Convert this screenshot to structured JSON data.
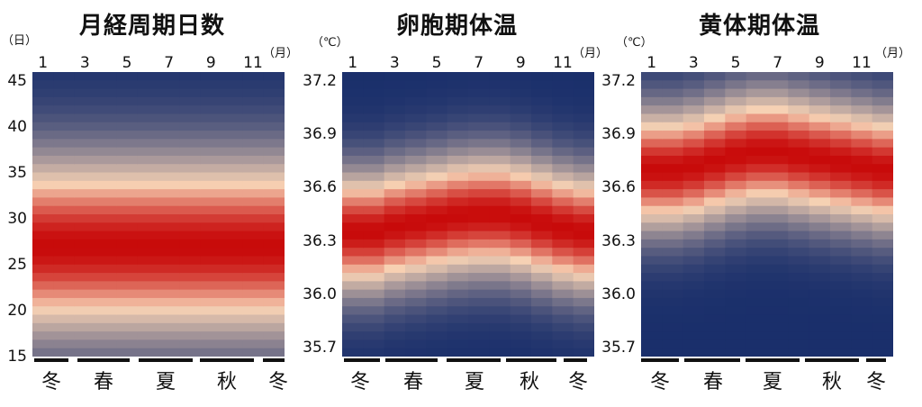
{
  "month_unit": "（月）",
  "seasons": [
    "冬",
    "春",
    "夏",
    "秋",
    "冬"
  ],
  "colors": {
    "low": "#1a2f6b",
    "mid": "#f7d2b4",
    "high": "#c80a0a"
  },
  "chart_data": [
    {
      "type": "heatmap",
      "title": "月経周期日数",
      "ylabel": "（日）",
      "x": [
        1,
        2,
        3,
        4,
        5,
        6,
        7,
        8,
        9,
        10,
        11,
        12
      ],
      "xticks": [
        "1",
        "3",
        "5",
        "7",
        "9",
        "11"
      ],
      "ylim": [
        15,
        46
      ],
      "yticks": [
        "45",
        "40",
        "35",
        "30",
        "25",
        "20",
        "15"
      ],
      "peak_by_month": [
        27,
        27,
        27,
        27,
        27,
        27,
        27,
        27,
        27,
        27,
        27,
        27
      ],
      "spread": 12
    },
    {
      "type": "heatmap",
      "title": "卵胞期体温",
      "ylabel": "（℃）",
      "x": [
        1,
        2,
        3,
        4,
        5,
        6,
        7,
        8,
        9,
        10,
        11,
        12
      ],
      "xticks": [
        "1",
        "3",
        "5",
        "7",
        "9",
        "11"
      ],
      "ylim": [
        35.65,
        37.25
      ],
      "yticks": [
        "37.2",
        "36.9",
        "36.6",
        "36.3",
        "36.0",
        "35.7"
      ],
      "peak_by_month": [
        36.35,
        36.35,
        36.38,
        36.4,
        36.42,
        36.44,
        36.45,
        36.45,
        36.43,
        36.4,
        36.37,
        36.35
      ],
      "spread": 0.42
    },
    {
      "type": "heatmap",
      "title": "黄体期体温",
      "ylabel": "（℃）",
      "x": [
        1,
        2,
        3,
        4,
        5,
        6,
        7,
        8,
        9,
        10,
        11,
        12
      ],
      "xticks": [
        "1",
        "3",
        "5",
        "7",
        "9",
        "11"
      ],
      "ylim": [
        35.65,
        37.25
      ],
      "yticks": [
        "37.2",
        "36.9",
        "36.6",
        "36.3",
        "36.0",
        "35.7"
      ],
      "peak_by_month": [
        36.7,
        36.7,
        36.72,
        36.75,
        36.78,
        36.8,
        36.8,
        36.78,
        36.76,
        36.74,
        36.72,
        36.7
      ],
      "spread": 0.42
    }
  ]
}
